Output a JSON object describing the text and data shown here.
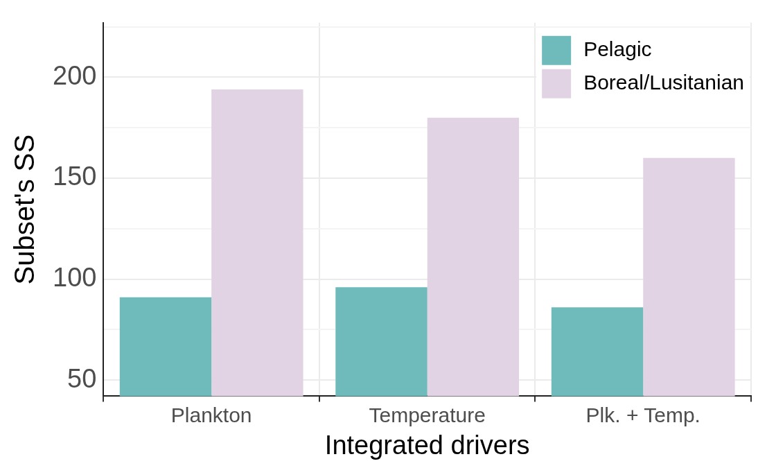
{
  "chart_data": {
    "type": "bar",
    "categories": [
      "Plankton",
      "Temperature",
      "Plk. + Temp."
    ],
    "series": [
      {
        "name": "Pelagic",
        "color": "#6fbbbb",
        "values": [
          91,
          96,
          86
        ]
      },
      {
        "name": "Boreal/Lusitanian",
        "color": "#e2d3e4",
        "values": [
          194,
          180,
          160
        ]
      }
    ],
    "xlabel": "Integrated drivers",
    "ylabel": "Subset's SS",
    "ylim": [
      42,
      227
    ],
    "yticks": [
      50,
      {
        "value": 75,
        "label": null
      },
      100,
      {
        "value": 125,
        "label": null
      },
      150,
      {
        "value": 175,
        "label": null
      },
      200,
      {
        "value": 225,
        "label": null
      }
    ],
    "grid": true,
    "legend": "top right"
  }
}
